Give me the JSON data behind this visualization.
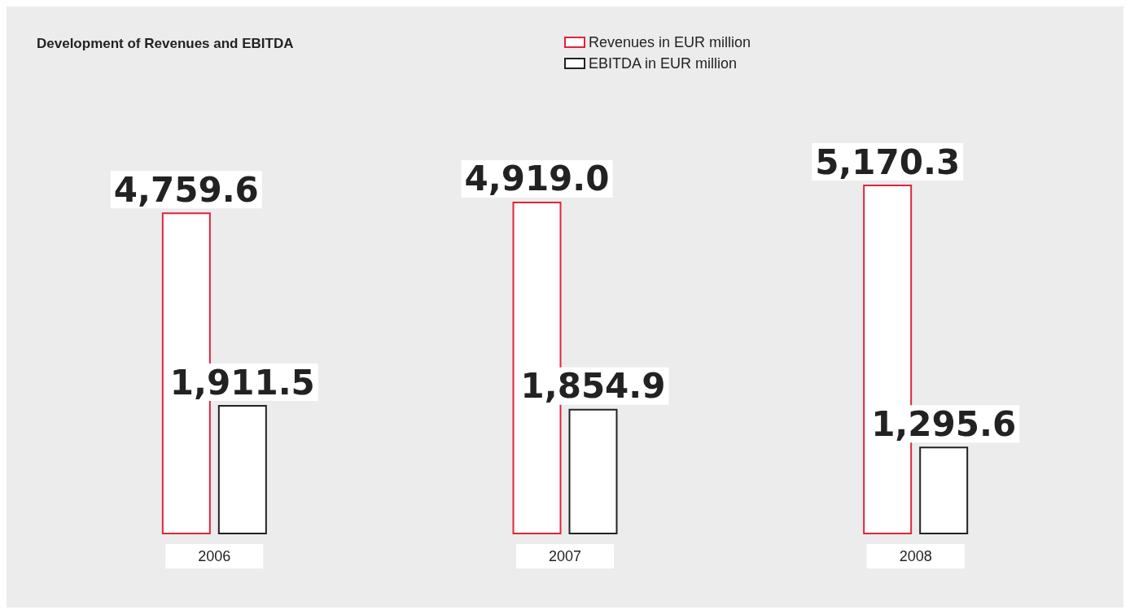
{
  "chart_data": {
    "type": "bar",
    "title": "Development of Revenues and EBITDA",
    "categories": [
      "2006",
      "2007",
      "2008"
    ],
    "series": [
      {
        "name": "Revenues in EUR million",
        "color": "#e0243c",
        "values": [
          4759.6,
          4919.0,
          5170.3
        ],
        "value_labels": [
          "4,759.6",
          "4,919.0",
          "5,170.3"
        ]
      },
      {
        "name": "EBITDA in EUR million",
        "color": "#222222",
        "values": [
          1911.5,
          1854.9,
          1295.6
        ],
        "value_labels": [
          "1,911.5",
          "1,854.9",
          "1,295.6"
        ]
      }
    ],
    "legend": "top"
  }
}
